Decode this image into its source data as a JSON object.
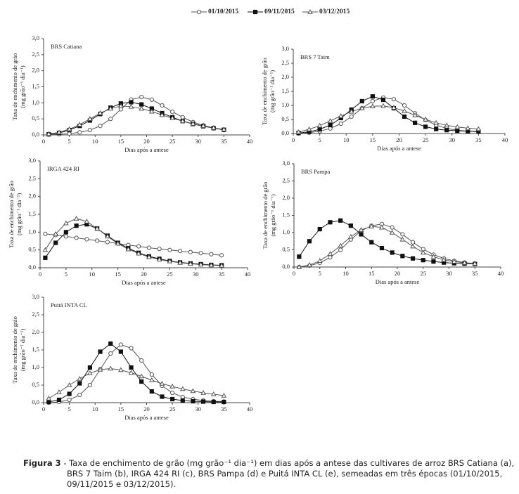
{
  "chart_data": [
    {
      "type": "line",
      "title": "BRS Catiana",
      "xlabel": "Dias após a antese",
      "ylabel": [
        "Taxa de enchimento de grão",
        "(mg grão⁻¹ dia⁻¹)"
      ],
      "x": [
        1,
        3,
        5,
        7,
        9,
        11,
        13,
        15,
        17,
        19,
        21,
        23,
        25,
        27,
        29,
        31,
        33,
        35
      ],
      "series": [
        {
          "name": "01/10/2015",
          "color": "#555555",
          "marker": "circle",
          "values": [
            0.01,
            0.02,
            0.04,
            0.08,
            0.15,
            0.28,
            0.5,
            0.8,
            1.1,
            1.18,
            1.1,
            0.92,
            0.72,
            0.55,
            0.4,
            0.3,
            0.22,
            0.15
          ]
        },
        {
          "name": "09/11/2015",
          "color": "#111111",
          "marker": "square",
          "values": [
            0.02,
            0.06,
            0.15,
            0.28,
            0.45,
            0.65,
            0.85,
            0.98,
            1.02,
            0.95,
            0.82,
            0.68,
            0.55,
            0.43,
            0.34,
            0.27,
            0.21,
            0.16
          ]
        },
        {
          "name": "03/12/2015",
          "color": "#555555",
          "marker": "triangle",
          "values": [
            0.03,
            0.08,
            0.18,
            0.32,
            0.5,
            0.68,
            0.82,
            0.9,
            0.88,
            0.82,
            0.73,
            0.62,
            0.52,
            0.43,
            0.35,
            0.28,
            0.22,
            0.17
          ]
        }
      ],
      "xlim": [
        0,
        40
      ],
      "xticks": [
        0,
        5,
        10,
        15,
        20,
        25,
        30,
        35,
        40
      ],
      "ylim": [
        0,
        3
      ],
      "yticks": [
        {
          "value": 0,
          "label": "0,0"
        },
        {
          "value": 0.5,
          "label": "0,5"
        },
        {
          "value": 1,
          "label": "1,0"
        },
        {
          "value": 1.5,
          "label": "1,5"
        },
        {
          "value": 2,
          "label": "2,0"
        },
        {
          "value": 2.5,
          "label": "2,5"
        },
        {
          "value": 3,
          "label": "3,0"
        }
      ]
    },
    {
      "type": "line",
      "title": "BRS 7 Taim",
      "xlabel": "Dias após a antese",
      "ylabel": [
        "Taxa de enchimento de grão",
        "(mg grão⁻¹ dia⁻¹)"
      ],
      "x": [
        1,
        3,
        5,
        7,
        9,
        11,
        13,
        15,
        17,
        19,
        21,
        23,
        25,
        27,
        29,
        31,
        33,
        35
      ],
      "series": [
        {
          "color": "#555555",
          "marker": "circle",
          "values": [
            0.0,
            0.03,
            0.08,
            0.18,
            0.35,
            0.6,
            0.9,
            1.15,
            1.28,
            1.22,
            1.0,
            0.72,
            0.48,
            0.3,
            0.18,
            0.12,
            0.08,
            0.06
          ]
        },
        {
          "color": "#111111",
          "marker": "square",
          "values": [
            0.02,
            0.06,
            0.15,
            0.3,
            0.55,
            0.85,
            1.15,
            1.32,
            1.2,
            0.9,
            0.6,
            0.38,
            0.24,
            0.16,
            0.12,
            0.1,
            0.08,
            0.07
          ]
        },
        {
          "color": "#555555",
          "marker": "triangle",
          "values": [
            0.05,
            0.15,
            0.28,
            0.45,
            0.62,
            0.78,
            0.9,
            0.97,
            0.98,
            0.92,
            0.8,
            0.65,
            0.5,
            0.38,
            0.29,
            0.23,
            0.19,
            0.16
          ]
        }
      ],
      "xlim": [
        0,
        40
      ],
      "xticks": [
        0,
        5,
        10,
        15,
        20,
        25,
        30,
        35,
        40
      ],
      "ylim": [
        0,
        3
      ],
      "yticks": [
        {
          "value": 0,
          "label": "0,0"
        },
        {
          "value": 0.5,
          "label": "0,5"
        },
        {
          "value": 1,
          "label": "1,0"
        },
        {
          "value": 1.5,
          "label": "1,5"
        },
        {
          "value": 2,
          "label": "2,0"
        },
        {
          "value": 2.5,
          "label": "2,5"
        },
        {
          "value": 3,
          "label": "3,0"
        }
      ]
    },
    {
      "type": "line",
      "title": "IRGA 424 RI",
      "xlabel": "Dias após a antese",
      "ylabel": [
        "Taxa de enchimento de grão",
        "(mg grão⁻¹ dia⁻¹)"
      ],
      "x": [
        1,
        3,
        5,
        7,
        9,
        11,
        13,
        15,
        17,
        19,
        21,
        23,
        25,
        27,
        29,
        31,
        33,
        35
      ],
      "series": [
        {
          "color": "#555555",
          "marker": "circle",
          "values": [
            0.95,
            0.92,
            0.88,
            0.84,
            0.8,
            0.76,
            0.72,
            0.68,
            0.64,
            0.6,
            0.56,
            0.53,
            0.5,
            0.47,
            0.44,
            0.41,
            0.38,
            0.35
          ]
        },
        {
          "color": "#111111",
          "marker": "square",
          "values": [
            0.28,
            0.7,
            1.0,
            1.18,
            1.22,
            1.1,
            0.9,
            0.7,
            0.55,
            0.42,
            0.32,
            0.25,
            0.19,
            0.15,
            0.12,
            0.1,
            0.08,
            0.07
          ]
        },
        {
          "color": "#555555",
          "marker": "triangle",
          "values": [
            0.5,
            0.95,
            1.25,
            1.38,
            1.3,
            1.1,
            0.88,
            0.68,
            0.52,
            0.4,
            0.3,
            0.23,
            0.18,
            0.14,
            0.11,
            0.09,
            0.07,
            0.06
          ]
        }
      ],
      "xlim": [
        0,
        40
      ],
      "xticks": [
        0,
        5,
        10,
        15,
        20,
        25,
        30,
        35,
        40
      ],
      "ylim": [
        0,
        3
      ],
      "yticks": [
        {
          "value": 0,
          "label": "0,0"
        },
        {
          "value": 0.5,
          "label": "0,5"
        },
        {
          "value": 1,
          "label": "1,0"
        },
        {
          "value": 1.5,
          "label": "1,5"
        },
        {
          "value": 2,
          "label": "2,0"
        },
        {
          "value": 2.5,
          "label": "2,5"
        },
        {
          "value": 3,
          "label": "3,0"
        }
      ]
    },
    {
      "type": "line",
      "title": "BRS Pampa",
      "xlabel": "Dias após a antese",
      "ylabel": [
        "Taxa de enchimento de grão",
        "(mg grão⁻¹ dia⁻¹)"
      ],
      "x": [
        1,
        3,
        5,
        7,
        9,
        11,
        13,
        15,
        17,
        19,
        21,
        23,
        25,
        27,
        29,
        31,
        33,
        35
      ],
      "series": [
        {
          "color": "#555555",
          "marker": "circle",
          "values": [
            0.0,
            0.04,
            0.12,
            0.28,
            0.5,
            0.8,
            1.05,
            1.2,
            1.25,
            1.15,
            0.95,
            0.72,
            0.52,
            0.36,
            0.25,
            0.18,
            0.13,
            0.1
          ]
        },
        {
          "color": "#111111",
          "marker": "square",
          "values": [
            0.3,
            0.75,
            1.1,
            1.3,
            1.35,
            1.2,
            0.95,
            0.72,
            0.55,
            0.42,
            0.32,
            0.25,
            0.2,
            0.16,
            0.13,
            0.11,
            0.1,
            0.09
          ]
        },
        {
          "color": "#555555",
          "marker": "triangle",
          "values": [
            0.0,
            0.06,
            0.18,
            0.38,
            0.62,
            0.88,
            1.08,
            1.18,
            1.15,
            1.0,
            0.8,
            0.6,
            0.42,
            0.3,
            0.21,
            0.16,
            0.12,
            0.1
          ]
        }
      ],
      "xlim": [
        0,
        40
      ],
      "xticks": [
        0,
        5,
        10,
        15,
        20,
        25,
        30,
        35,
        40
      ],
      "ylim": [
        0,
        3
      ],
      "yticks": [
        {
          "value": 0,
          "label": "0,0"
        },
        {
          "value": 0.5,
          "label": "0,5"
        },
        {
          "value": 1,
          "label": "1,0"
        },
        {
          "value": 1.5,
          "label": "1,5"
        },
        {
          "value": 2,
          "label": "2,0"
        },
        {
          "value": 2.5,
          "label": "2,5"
        },
        {
          "value": 3,
          "label": "3,0"
        }
      ]
    },
    {
      "type": "line",
      "title": "Puitá INTA CL",
      "xlabel": "Dias após a antese",
      "ylabel": [
        "Taxa de enchimento de grão",
        "(mg grão⁻¹ dia⁻¹)"
      ],
      "x": [
        1,
        3,
        5,
        7,
        9,
        11,
        13,
        15,
        17,
        19,
        21,
        23,
        25,
        27,
        29,
        31,
        33,
        35
      ],
      "series": [
        {
          "color": "#555555",
          "marker": "circle",
          "values": [
            0.0,
            0.02,
            0.08,
            0.22,
            0.5,
            0.95,
            1.4,
            1.65,
            1.55,
            1.2,
            0.8,
            0.48,
            0.28,
            0.16,
            0.1,
            0.06,
            0.04,
            0.03
          ]
        },
        {
          "color": "#111111",
          "marker": "square",
          "values": [
            0.02,
            0.08,
            0.25,
            0.55,
            1.0,
            1.45,
            1.68,
            1.45,
            1.0,
            0.6,
            0.32,
            0.17,
            0.1,
            0.06,
            0.04,
            0.03,
            0.02,
            0.02
          ]
        },
        {
          "color": "#555555",
          "marker": "triangle",
          "values": [
            0.12,
            0.3,
            0.5,
            0.68,
            0.84,
            0.94,
            0.97,
            0.93,
            0.85,
            0.75,
            0.64,
            0.54,
            0.46,
            0.39,
            0.33,
            0.28,
            0.24,
            0.2
          ]
        }
      ],
      "xlim": [
        0,
        40
      ],
      "xticks": [
        0,
        5,
        10,
        15,
        20,
        25,
        30,
        35,
        40
      ],
      "ylim": [
        0,
        3
      ],
      "yticks": [
        {
          "value": 0,
          "label": "0,0"
        },
        {
          "value": 0.5,
          "label": "0,5"
        },
        {
          "value": 1,
          "label": "1,0"
        },
        {
          "value": 1.5,
          "label": "1,5"
        },
        {
          "value": 2,
          "label": "2,0"
        },
        {
          "value": 2.5,
          "label": "2,5"
        },
        {
          "value": 3,
          "label": "3,0"
        }
      ]
    }
  ],
  "caption": {
    "label": "Figura 3",
    "text": "- Taxa de enchimento de grão (mg grão⁻¹ dia⁻¹) em dias após a antese das cultivares de arroz BRS Catiana (a), BRS 7 Taim (b), IRGA 424 RI (c), BRS Pampa (d) e Puitá INTA CL (e), semeadas em três épocas (01/10/2015, 09/11/2015 e 03/12/2015)."
  }
}
